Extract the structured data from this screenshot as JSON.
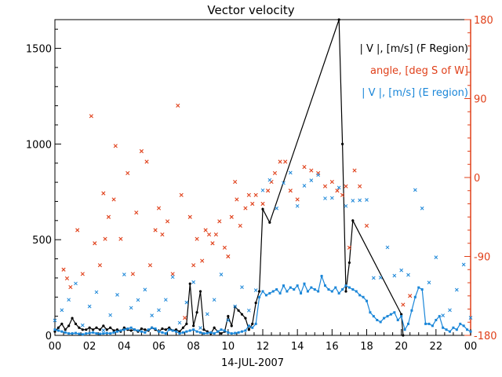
{
  "chart_data": {
    "type": "line",
    "title": "Vector velocity",
    "xlabel": "14-JUL-2007",
    "ylabel": "",
    "x_range": [
      0,
      24
    ],
    "ylim": [
      0,
      1650
    ],
    "y2lim": [
      -180,
      180
    ],
    "x_ticks": [
      "00",
      "02",
      "04",
      "06",
      "08",
      "10",
      "12",
      "14",
      "16",
      "18",
      "20",
      "22",
      "00"
    ],
    "y_ticks": [
      "0",
      "500",
      "1000",
      "1500"
    ],
    "y2_ticks": [
      "-180",
      "-90",
      "0",
      "90",
      "180"
    ],
    "colors": {
      "f_region": "#000000",
      "angle": "#e0401a",
      "e_region": "#1a86d8"
    },
    "legend": [
      {
        "name": "f_region",
        "text": "| V |, [m/s] (F Region)",
        "color": "#000000"
      },
      {
        "name": "angle",
        "text": "angle, [deg S of W]",
        "color": "#e0401a"
      },
      {
        "name": "e_region",
        "text": "| V |, [m/s] (E region)",
        "color": "#1a86d8"
      }
    ],
    "series": [
      {
        "name": "| V |, [m/s] (F Region)",
        "axis": "left",
        "style": "line-dots",
        "color": "#000000",
        "x": [
          0.0,
          0.2,
          0.4,
          0.6,
          0.8,
          1.0,
          1.2,
          1.4,
          1.6,
          1.8,
          2.0,
          2.2,
          2.4,
          2.6,
          2.8,
          3.0,
          3.2,
          3.4,
          3.6,
          3.8,
          4.0,
          4.2,
          4.4,
          4.6,
          4.8,
          5.0,
          5.2,
          5.4,
          5.6,
          5.8,
          6.0,
          6.2,
          6.4,
          6.6,
          6.8,
          7.0,
          7.2,
          7.4,
          7.6,
          7.8,
          8.0,
          8.2,
          8.4,
          8.6,
          8.8,
          9.0,
          9.2,
          9.4,
          9.6,
          9.8,
          10.0,
          10.2,
          10.4,
          10.6,
          10.8,
          11.0,
          11.2,
          11.4,
          11.6,
          11.8,
          12.0,
          12.4,
          16.4,
          16.6,
          16.8,
          17.0,
          17.2,
          20.0,
          20.1
        ],
        "values": [
          20,
          40,
          60,
          30,
          50,
          90,
          60,
          40,
          30,
          30,
          40,
          30,
          40,
          30,
          50,
          30,
          40,
          25,
          30,
          20,
          40,
          30,
          25,
          30,
          20,
          35,
          30,
          25,
          40,
          30,
          20,
          35,
          30,
          40,
          25,
          30,
          20,
          40,
          60,
          270,
          50,
          120,
          230,
          30,
          20,
          10,
          40,
          20,
          10,
          20,
          100,
          50,
          150,
          130,
          110,
          90,
          30,
          60,
          170,
          230,
          660,
          590,
          1650,
          1000,
          230,
          380,
          600,
          110,
          0
        ]
      },
      {
        "name": "angle, [deg S of W]",
        "axis": "right",
        "style": "markers-x",
        "color": "#e0401a",
        "x": [
          0.5,
          0.7,
          0.9,
          1.3,
          1.6,
          2.1,
          2.3,
          2.6,
          2.8,
          2.9,
          3.1,
          3.4,
          3.5,
          3.8,
          4.2,
          4.5,
          4.7,
          5.0,
          5.3,
          5.5,
          5.8,
          6.0,
          6.2,
          6.5,
          6.8,
          7.1,
          7.3,
          7.5,
          7.8,
          8.0,
          8.2,
          8.5,
          8.7,
          8.9,
          9.1,
          9.3,
          9.5,
          9.8,
          10.0,
          10.2,
          10.4,
          10.5,
          10.7,
          11.0,
          11.2,
          11.4,
          11.6,
          12.0,
          12.3,
          12.5,
          12.7,
          13.0,
          13.3,
          13.6,
          14.0,
          14.4,
          14.8,
          15.2,
          15.6,
          16.0,
          16.3,
          16.6,
          16.8,
          17.0,
          17.3,
          17.6,
          18.0,
          20.1,
          20.5
        ],
        "values": [
          -105,
          -115,
          -125,
          -60,
          -110,
          70,
          -75,
          -100,
          -18,
          -70,
          -45,
          -25,
          36,
          -70,
          5,
          -110,
          -40,
          30,
          18,
          -100,
          -60,
          -35,
          -65,
          -50,
          -110,
          82,
          -20,
          -160,
          -45,
          -100,
          -70,
          -95,
          -60,
          -65,
          -75,
          -65,
          -50,
          -80,
          -90,
          -45,
          -5,
          -25,
          -55,
          -35,
          -20,
          -30,
          -20,
          -30,
          -15,
          -5,
          5,
          18,
          18,
          -15,
          -25,
          12,
          8,
          5,
          -10,
          -5,
          -15,
          -20,
          -10,
          -80,
          8,
          -10,
          -55,
          -145,
          -135
        ]
      },
      {
        "name": "| V |, [m/s] (E region)",
        "axis": "left",
        "style": "line-squares",
        "color": "#1a86d8",
        "x": [
          0.0,
          0.2,
          0.4,
          0.6,
          0.8,
          1.0,
          1.2,
          1.4,
          1.6,
          1.8,
          2.0,
          2.2,
          2.4,
          2.6,
          2.8,
          3.0,
          3.2,
          3.4,
          3.6,
          3.8,
          4.0,
          4.2,
          4.4,
          4.6,
          4.8,
          5.0,
          5.2,
          5.4,
          5.6,
          5.8,
          6.0,
          6.2,
          6.4,
          6.6,
          6.8,
          7.0,
          7.2,
          7.4,
          7.6,
          7.8,
          8.0,
          8.2,
          8.4,
          8.6,
          8.8,
          9.0,
          9.2,
          9.4,
          9.6,
          9.8,
          10.0,
          10.2,
          10.4,
          10.6,
          10.8,
          11.0,
          11.2,
          11.4,
          11.6,
          11.8,
          12.0,
          12.2,
          12.4,
          12.6,
          12.8,
          13.0,
          13.2,
          13.4,
          13.6,
          13.8,
          14.0,
          14.2,
          14.4,
          14.6,
          14.8,
          15.0,
          15.2,
          15.4,
          15.6,
          15.8,
          16.0,
          16.2,
          16.4,
          16.6,
          16.8,
          17.0,
          17.2,
          17.4,
          17.6,
          17.8,
          18.0,
          18.2,
          18.4,
          18.6,
          18.8,
          19.0,
          19.2,
          19.4,
          19.6,
          19.8,
          20.0,
          20.2,
          20.4,
          20.6,
          20.8,
          21.0,
          21.2,
          21.4,
          21.6,
          21.8,
          22.0,
          22.2,
          22.4,
          22.6,
          22.8,
          23.0,
          23.2,
          23.4,
          23.6,
          23.8,
          24.0
        ],
        "values": [
          30,
          25,
          20,
          15,
          10,
          10,
          12,
          8,
          5,
          10,
          12,
          15,
          10,
          8,
          10,
          12,
          10,
          15,
          20,
          25,
          30,
          35,
          40,
          30,
          25,
          20,
          15,
          30,
          40,
          35,
          20,
          15,
          10,
          30,
          25,
          20,
          10,
          15,
          20,
          25,
          30,
          20,
          15,
          10,
          12,
          15,
          10,
          20,
          30,
          25,
          15,
          10,
          12,
          15,
          20,
          25,
          50,
          40,
          60,
          200,
          230,
          210,
          220,
          230,
          240,
          220,
          260,
          230,
          250,
          240,
          260,
          220,
          270,
          230,
          250,
          240,
          230,
          310,
          260,
          240,
          230,
          250,
          220,
          240,
          260,
          250,
          240,
          230,
          210,
          200,
          180,
          120,
          100,
          80,
          70,
          90,
          100,
          110,
          120,
          80,
          100,
          30,
          60,
          130,
          200,
          250,
          240,
          60,
          60,
          50,
          80,
          100,
          40,
          30,
          20,
          40,
          30,
          60,
          50,
          30,
          20
        ]
      }
    ]
  }
}
